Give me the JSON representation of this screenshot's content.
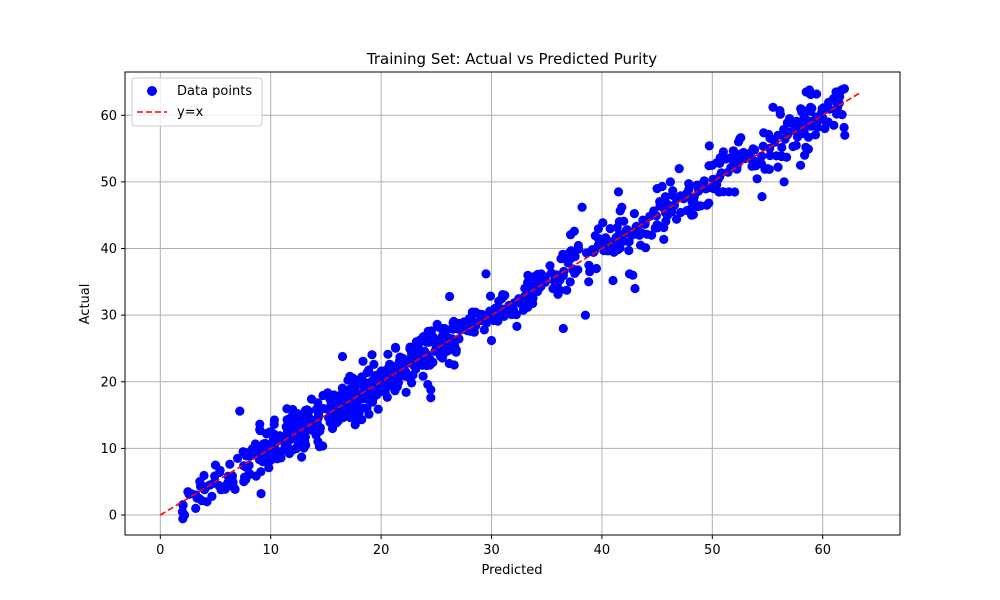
{
  "chart_data": {
    "type": "scatter",
    "title": "Training Set: Actual vs Predicted Purity",
    "xlabel": "Predicted",
    "ylabel": "Actual",
    "xlim": [
      -3.2,
      67.0
    ],
    "ylim": [
      -3.0,
      66.5
    ],
    "xticks": [
      0,
      10,
      20,
      30,
      40,
      50,
      60
    ],
    "yticks": [
      0,
      10,
      20,
      30,
      40,
      50,
      60
    ],
    "grid": true,
    "legend_position": "upper-left",
    "series": [
      {
        "name": "Data points",
        "kind": "scatter",
        "color": "#0000ff",
        "clusters": [
          {
            "x": [
              2,
              9
            ],
            "spread": 1.6,
            "n": 45
          },
          {
            "x": [
              9,
              20
            ],
            "spread": 1.7,
            "n": 260
          },
          {
            "x": [
              20,
              27
            ],
            "spread": 1.6,
            "n": 150
          },
          {
            "x": [
              27,
              36
            ],
            "spread": 1.4,
            "n": 90
          },
          {
            "x": [
              36,
              47
            ],
            "spread": 1.6,
            "n": 110
          },
          {
            "x": [
              47,
              62
            ],
            "spread": 1.8,
            "n": 160
          }
        ],
        "points": [
          [
            2.0,
            0.5
          ],
          [
            2.2,
            0.0
          ],
          [
            2.5,
            3.5
          ],
          [
            2.8,
            3.2
          ],
          [
            3.2,
            1.0
          ],
          [
            3.5,
            2.5
          ],
          [
            4.0,
            3.8
          ],
          [
            4.5,
            4.5
          ],
          [
            5.0,
            7.5
          ],
          [
            5.5,
            3.8
          ],
          [
            6.0,
            4.5
          ],
          [
            6.5,
            5.5
          ],
          [
            7.0,
            8.5
          ],
          [
            7.2,
            15.6
          ],
          [
            7.5,
            9.5
          ],
          [
            8.0,
            6.0
          ],
          [
            8.5,
            10.0
          ],
          [
            9.0,
            12.8
          ],
          [
            16.5,
            23.8
          ],
          [
            24.5,
            17.6
          ],
          [
            24.5,
            18.8
          ],
          [
            26.2,
            32.8
          ],
          [
            28.0,
            29.5
          ],
          [
            29.5,
            36.2
          ],
          [
            30.0,
            26.2
          ],
          [
            31.2,
            33.0
          ],
          [
            34.5,
            36.2
          ],
          [
            36.5,
            28.0
          ],
          [
            37.5,
            42.6
          ],
          [
            38.2,
            46.2
          ],
          [
            38.5,
            30.0
          ],
          [
            38.8,
            35.0
          ],
          [
            39.5,
            37.0
          ],
          [
            41.0,
            35.2
          ],
          [
            41.5,
            48.5
          ],
          [
            41.8,
            46.2
          ],
          [
            42.5,
            36.2
          ],
          [
            42.8,
            36.0
          ],
          [
            43.0,
            34.0
          ],
          [
            43.5,
            40.5
          ],
          [
            44.5,
            42.0
          ],
          [
            45.0,
            49.0
          ],
          [
            46.2,
            50.0
          ],
          [
            47.0,
            52.0
          ],
          [
            49.5,
            46.5
          ],
          [
            50.0,
            52.5
          ],
          [
            51.0,
            54.5
          ],
          [
            51.5,
            48.5
          ],
          [
            52.5,
            56.5
          ],
          [
            54.5,
            47.8
          ],
          [
            55.0,
            52.0
          ],
          [
            55.5,
            61.2
          ],
          [
            56.5,
            50.0
          ],
          [
            57.0,
            59.5
          ],
          [
            58.0,
            52.5
          ],
          [
            58.5,
            63.5
          ],
          [
            58.8,
            63.8
          ],
          [
            59.0,
            58.5
          ],
          [
            60.5,
            59.0
          ],
          [
            61.0,
            58.5
          ],
          [
            61.2,
            63.5
          ],
          [
            61.5,
            61.8
          ],
          [
            62.0,
            57.0
          ]
        ]
      },
      {
        "name": "y=x",
        "kind": "line",
        "style": "dashed",
        "color": "#ff0000",
        "x": [
          0,
          63.5
        ],
        "y": [
          0,
          63.5
        ]
      }
    ]
  }
}
